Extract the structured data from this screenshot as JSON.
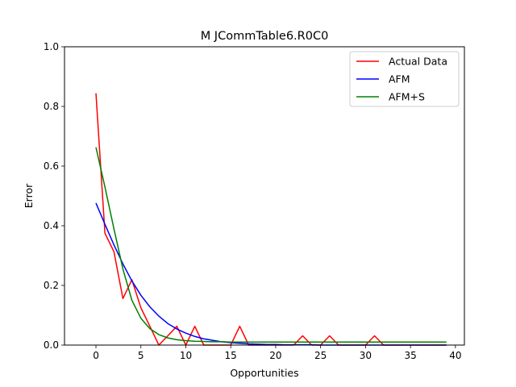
{
  "chart_data": {
    "type": "line",
    "title": "M  JCommTable6.R0C0",
    "xlabel": "Opportunities",
    "ylabel": "Error",
    "xlim": [
      -3.5,
      41
    ],
    "ylim": [
      0,
      1.0
    ],
    "xticks": [
      0,
      5,
      10,
      15,
      20,
      25,
      30,
      35,
      40
    ],
    "yticks": [
      0.0,
      0.2,
      0.4,
      0.6,
      0.8,
      1.0
    ],
    "xtick_labels": [
      "0",
      "5",
      "10",
      "15",
      "20",
      "25",
      "30",
      "35",
      "40"
    ],
    "ytick_labels": [
      "0.0",
      "0.2",
      "0.4",
      "0.6",
      "0.8",
      "1.0"
    ],
    "grid": false,
    "legend_position": "top-right",
    "series": [
      {
        "name": "Actual Data",
        "color": "#ff0000",
        "x": [
          0,
          1,
          2,
          3,
          4,
          5,
          6,
          7,
          8,
          9,
          10,
          11,
          12,
          13,
          14,
          15,
          16,
          17,
          18,
          19,
          20,
          21,
          22,
          23,
          24,
          25,
          26,
          27,
          28,
          29,
          30,
          31,
          32,
          33,
          34,
          35,
          36,
          37,
          38,
          39
        ],
        "y": [
          0.844,
          0.375,
          0.313,
          0.156,
          0.219,
          0.125,
          0.063,
          0.0,
          0.031,
          0.063,
          0.0,
          0.063,
          0.0,
          0.0,
          0.0,
          0.0,
          0.063,
          0.0,
          0.0,
          0.0,
          0.0,
          0.0,
          0.0,
          0.031,
          0.0,
          0.0,
          0.031,
          0.0,
          0.0,
          0.0,
          0.0,
          0.031,
          0.0,
          0.0,
          0.0,
          0.0,
          0.0,
          0.0,
          0.0,
          0.0
        ]
      },
      {
        "name": "AFM",
        "color": "#0000ff",
        "x": [
          0,
          1,
          2,
          3,
          4,
          5,
          6,
          7,
          8,
          9,
          10,
          11,
          12,
          13,
          14,
          15,
          16,
          17,
          18,
          19,
          20,
          21,
          22,
          23,
          24,
          25,
          26,
          27,
          28,
          29,
          30,
          31,
          32,
          33,
          34,
          35,
          36,
          37,
          38,
          39
        ],
        "y": [
          0.476,
          0.405,
          0.336,
          0.272,
          0.215,
          0.167,
          0.128,
          0.097,
          0.072,
          0.054,
          0.04,
          0.029,
          0.021,
          0.016,
          0.011,
          0.008,
          0.006,
          0.004,
          0.003,
          0.002,
          0.002,
          0.001,
          0.001,
          0.001,
          0.001,
          0.0,
          0.0,
          0.0,
          0.0,
          0.0,
          0.0,
          0.0,
          0.0,
          0.0,
          0.0,
          0.0,
          0.0,
          0.0,
          0.0,
          0.0
        ]
      },
      {
        "name": "AFM+S",
        "color": "#008000",
        "x": [
          0,
          1,
          2,
          3,
          4,
          5,
          6,
          7,
          8,
          9,
          10,
          11,
          12,
          13,
          14,
          15,
          16,
          17,
          18,
          19,
          20,
          21,
          22,
          23,
          24,
          25,
          26,
          27,
          28,
          29,
          30,
          31,
          32,
          33,
          34,
          35,
          36,
          37,
          38,
          39
        ],
        "y": [
          0.663,
          0.53,
          0.39,
          0.255,
          0.15,
          0.09,
          0.055,
          0.035,
          0.024,
          0.018,
          0.015,
          0.013,
          0.012,
          0.011,
          0.011,
          0.01,
          0.01,
          0.01,
          0.01,
          0.01,
          0.01,
          0.01,
          0.01,
          0.01,
          0.01,
          0.01,
          0.01,
          0.01,
          0.01,
          0.01,
          0.01,
          0.01,
          0.01,
          0.01,
          0.01,
          0.01,
          0.01,
          0.01,
          0.01,
          0.01
        ]
      }
    ]
  }
}
